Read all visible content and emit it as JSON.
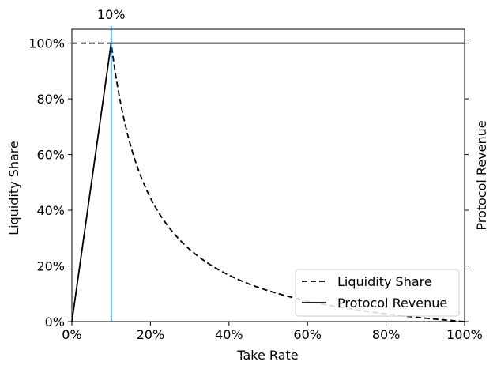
{
  "chart_data": {
    "type": "line",
    "xlabel": "Take Rate",
    "ylabel_left": "Liquidity Share",
    "ylabel_right": "Protocol Revenue",
    "xlim": [
      0,
      1
    ],
    "ylim": [
      0,
      1.05
    ],
    "x_ticks": [
      0,
      0.2,
      0.4,
      0.6,
      0.8,
      1.0
    ],
    "x_tick_labels": [
      "0%",
      "20%",
      "40%",
      "60%",
      "80%",
      "100%"
    ],
    "y_ticks": [
      0,
      0.2,
      0.4,
      0.6,
      0.8,
      1.0
    ],
    "y_tick_labels": [
      "0%",
      "20%",
      "40%",
      "60%",
      "80%",
      "100%"
    ],
    "right_axis_tick_labels": false,
    "grid": false,
    "annotation": {
      "x": 0.1,
      "label": "10%",
      "color": "#1f77b4"
    },
    "legend": {
      "placement": "bottom-right"
    },
    "series": [
      {
        "name": "Liquidity Share",
        "style": "dashed",
        "color": "#000000",
        "x": [
          0,
          0.05,
          0.1,
          0.12,
          0.14,
          0.16,
          0.18,
          0.2,
          0.25,
          0.3,
          0.35,
          0.4,
          0.5,
          0.6,
          0.7,
          0.8,
          0.9,
          1.0
        ],
        "y": [
          1.0,
          1.0,
          1.0,
          0.819,
          0.69,
          0.593,
          0.517,
          0.456,
          0.345,
          0.27,
          0.217,
          0.177,
          0.12,
          0.081,
          0.051,
          0.028,
          0.012,
          0.0
        ]
      },
      {
        "name": "Protocol Revenue",
        "style": "solid",
        "color": "#000000",
        "x": [
          0,
          0.1,
          0.1,
          1.0
        ],
        "y": [
          0,
          1.0,
          1.0,
          1.0
        ]
      }
    ]
  }
}
